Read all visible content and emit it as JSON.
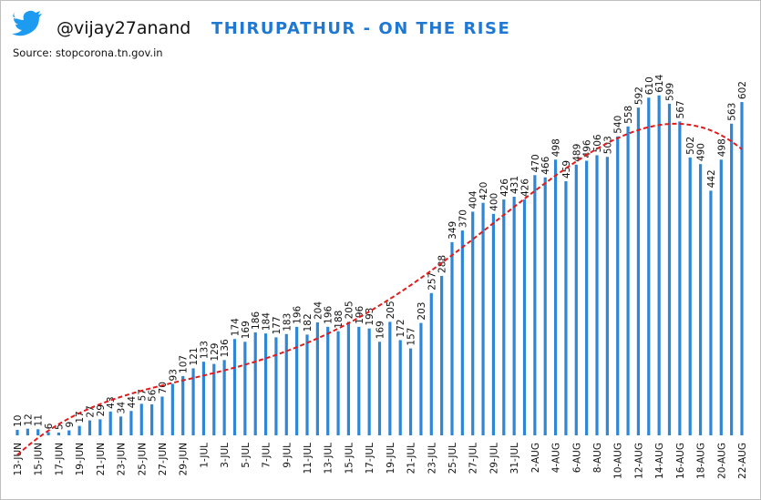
{
  "handle": "@vijay27anand",
  "chart_data": {
    "type": "bar",
    "title": "THIRUPATHUR - ON THE RISE",
    "source": "Source: stopcorona.tn.gov.in",
    "categories": [
      "13-JUN",
      null,
      "15-JUN",
      null,
      "17-JUN",
      null,
      "19-JUN",
      null,
      "21-JUN",
      null,
      "23-JUN",
      null,
      "25-JUN",
      null,
      "27-JUN",
      null,
      "29-JUN",
      null,
      "1-JUL",
      null,
      "3-JUL",
      null,
      "5-JUL",
      null,
      "7-JUL",
      null,
      "9-JUL",
      null,
      "11-JUL",
      null,
      "13-JUL",
      null,
      "15-JUL",
      null,
      "17-JUL",
      null,
      "19-JUL",
      null,
      "21-JUL",
      null,
      "23-JUL",
      null,
      "25-JUL",
      null,
      "27-JUL",
      null,
      "29-JUL",
      null,
      "31-JUL",
      null,
      "2-AUG",
      null,
      "4-AUG",
      null,
      "6-AUG",
      null,
      "8-AUG",
      null,
      "10-AUG",
      null,
      "12-AUG",
      null,
      "14-AUG",
      null,
      "16-AUG",
      null,
      "18-AUG",
      null,
      "20-AUG",
      null,
      "22-AUG"
    ],
    "values": [
      10,
      12,
      11,
      6,
      5,
      9,
      17,
      27,
      29,
      43,
      34,
      44,
      57,
      56,
      70,
      93,
      107,
      121,
      133,
      129,
      136,
      174,
      169,
      186,
      184,
      177,
      183,
      196,
      182,
      204,
      196,
      188,
      205,
      196,
      193,
      169,
      205,
      172,
      157,
      203,
      257,
      288,
      349,
      370,
      404,
      420,
      400,
      426,
      431,
      426,
      470,
      466,
      498,
      459,
      489,
      496,
      506,
      503,
      540,
      558,
      592,
      610,
      614,
      599,
      567,
      502,
      490,
      442,
      498,
      563,
      602
    ],
    "color": "#2e86d6",
    "trendline": true,
    "trendline_color": "#e01b1b"
  }
}
